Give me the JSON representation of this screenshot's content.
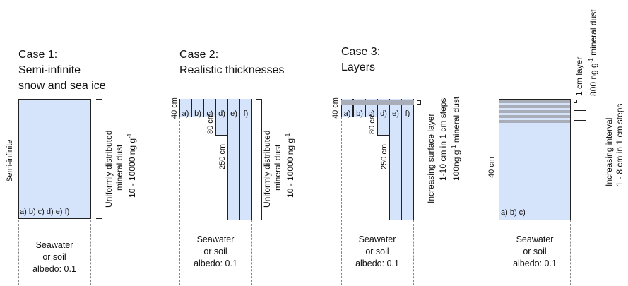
{
  "cases": [
    {
      "title_line1": "Case 1:",
      "title_line2": "Semi-infinite",
      "title_line3": "snow and sea ice",
      "side_label": "Semi-infinite",
      "columns_label": "a) b) c) d) e) f)",
      "bracket_line1": "Uniformly distributed",
      "bracket_line2": "mineral dust",
      "bracket_line3": "10 - 10000 ng g",
      "bracket_sup": "-1",
      "bottom_line1": "Seawater",
      "bottom_line2": "or soil",
      "bottom_line3": "albedo: 0.1"
    },
    {
      "title_line1": "Case 2:",
      "title_line2": "Realistic thicknesses",
      "depth_labels": [
        "40 cm",
        "80 cm",
        "250 cm"
      ],
      "columns": [
        "a)",
        "b)",
        "c)",
        "d)",
        "e)",
        "f)"
      ],
      "bracket_line1": "Uniformly distributed",
      "bracket_line2": "mineral dust",
      "bracket_line3": "10 - 10000 ng g",
      "bracket_sup": "-1",
      "bottom_line1": "Seawater",
      "bottom_line2": "or soil",
      "bottom_line3": "albedo: 0.1"
    },
    {
      "title_line1": "Case 3:",
      "title_line2": "Layers",
      "depth_labels": [
        "40 cm",
        "80 cm",
        "250 cm"
      ],
      "columns": [
        "a)",
        "b)",
        "c)",
        "d)",
        "e)",
        "f)"
      ],
      "side_line1": "Increasing surface layer",
      "side_line2": "1-10 cm in 1 cm steps",
      "side_line3a": "100ng g",
      "side_sup": "-1",
      "side_line3b": " mineral dust",
      "bottom_line1": "Seawater",
      "bottom_line2": "or soil",
      "bottom_line3": "albedo: 0.1"
    },
    {
      "depth_label": "40 cm",
      "columns_label": "a) b) c)",
      "top_line1": "1 cm layer",
      "top_line2a": "800 ng g",
      "top_sup": "-1",
      "top_line2b": " mineral dust",
      "interval_line1": "Increasing interval",
      "interval_line2": "1 - 8 cm in 1 cm steps",
      "bottom_line1": "Seawater",
      "bottom_line2": "or soil",
      "bottom_line3": "albedo: 0.1"
    }
  ],
  "colors": {
    "ice": "#d6e4fb",
    "dust_layer": "#a9adb8",
    "outline": "#222222"
  }
}
